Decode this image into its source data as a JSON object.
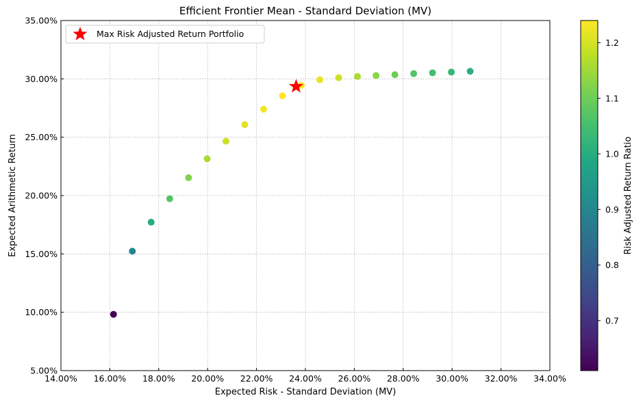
{
  "chart_data": {
    "type": "scatter",
    "title": "Efficient Frontier Mean - Standard Deviation (MV)",
    "xlabel": "Expected Risk - Standard Deviation (MV)",
    "ylabel": "Expected Arithmetic Return",
    "xlim": [
      0.14,
      0.34
    ],
    "ylim": [
      0.05,
      0.35
    ],
    "xticks": [
      0.14,
      0.16,
      0.18,
      0.2,
      0.22,
      0.24,
      0.26,
      0.28,
      0.3,
      0.32,
      0.34
    ],
    "xtick_labels": [
      "14.00%",
      "16.00%",
      "18.00%",
      "20.00%",
      "22.00%",
      "24.00%",
      "26.00%",
      "28.00%",
      "30.00%",
      "32.00%",
      "34.00%"
    ],
    "yticks": [
      0.05,
      0.1,
      0.15,
      0.2,
      0.25,
      0.3,
      0.35
    ],
    "ytick_labels": [
      "5.00%",
      "10.00%",
      "15.00%",
      "20.00%",
      "25.00%",
      "30.00%",
      "35.00%"
    ],
    "grid": true,
    "legend_position": "top-left",
    "points": [
      {
        "x": 0.1615,
        "y": 0.0982,
        "ratio": 0.61
      },
      {
        "x": 0.1692,
        "y": 0.1523,
        "ratio": 0.9
      },
      {
        "x": 0.1769,
        "y": 0.1772,
        "ratio": 1.0
      },
      {
        "x": 0.1845,
        "y": 0.1973,
        "ratio": 1.07
      },
      {
        "x": 0.1922,
        "y": 0.2153,
        "ratio": 1.12
      },
      {
        "x": 0.1998,
        "y": 0.2315,
        "ratio": 1.16
      },
      {
        "x": 0.2075,
        "y": 0.2466,
        "ratio": 1.19
      },
      {
        "x": 0.2152,
        "y": 0.2608,
        "ratio": 1.21
      },
      {
        "x": 0.2229,
        "y": 0.274,
        "ratio": 1.23
      },
      {
        "x": 0.2306,
        "y": 0.2855,
        "ratio": 1.24
      },
      {
        "x": 0.2383,
        "y": 0.2945,
        "ratio": 1.24
      },
      {
        "x": 0.2459,
        "y": 0.2993,
        "ratio": 1.22
      },
      {
        "x": 0.2536,
        "y": 0.301,
        "ratio": 1.19
      },
      {
        "x": 0.2613,
        "y": 0.302,
        "ratio": 1.16
      },
      {
        "x": 0.2689,
        "y": 0.3028,
        "ratio": 1.13
      },
      {
        "x": 0.2766,
        "y": 0.3036,
        "ratio": 1.1
      },
      {
        "x": 0.2843,
        "y": 0.3045,
        "ratio": 1.07
      },
      {
        "x": 0.292,
        "y": 0.3052,
        "ratio": 1.05
      },
      {
        "x": 0.2997,
        "y": 0.3058,
        "ratio": 1.03
      },
      {
        "x": 0.3074,
        "y": 0.3065,
        "ratio": 1.01
      }
    ],
    "highlight": {
      "label": "Max Risk Adjusted Return Portfolio",
      "x": 0.2362,
      "y": 0.2935,
      "marker": "star",
      "color": "#ff0000"
    },
    "colorbar": {
      "label": "Risk Adjusted Return Ratio",
      "colormap": "viridis",
      "range": [
        0.61,
        1.24
      ],
      "ticks": [
        0.7,
        0.8,
        0.9,
        1.0,
        1.1,
        1.2
      ],
      "tick_labels": [
        "0.7",
        "0.8",
        "0.9",
        "1.0",
        "1.1",
        "1.2"
      ]
    }
  }
}
